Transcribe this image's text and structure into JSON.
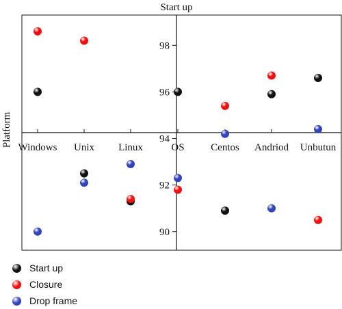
{
  "chart_data": {
    "type": "scatter",
    "title": "Start up",
    "xlabel": "OS",
    "ylabel": "Platform",
    "categories": [
      "Windows",
      "Unix",
      "Linux",
      "OS",
      "Centos",
      "Andriod",
      "Unbutun"
    ],
    "yticks": [
      90,
      92,
      94,
      96,
      98
    ],
    "ylim": [
      89.2,
      99.3
    ],
    "grid": false,
    "legend_position": "bottom-left",
    "series": [
      {
        "name": "Start up",
        "color": "#111111",
        "values": [
          96.0,
          92.5,
          91.3,
          96.0,
          90.9,
          95.9,
          96.6
        ]
      },
      {
        "name": "Closure",
        "color": "#ee1111",
        "values": [
          98.6,
          98.2,
          91.4,
          91.8,
          95.4,
          96.7,
          90.5
        ]
      },
      {
        "name": "Drop frame",
        "color": "#3344bb",
        "values": [
          90.0,
          92.1,
          92.9,
          92.3,
          94.2,
          91.0,
          94.4
        ]
      }
    ]
  }
}
